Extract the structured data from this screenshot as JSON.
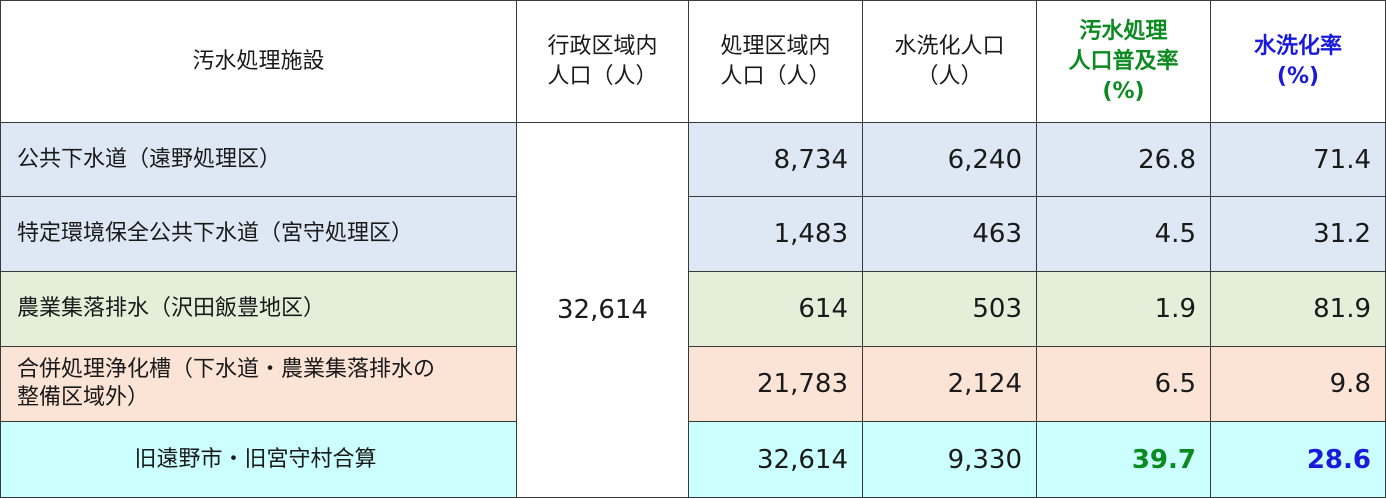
{
  "table": {
    "headers": {
      "facility": "汚水処理施設",
      "admin_pop_line1": "行政区域内",
      "admin_pop_line2": "人口（人）",
      "service_pop_line1": "処理区域内",
      "service_pop_line2": "人口（人）",
      "flush_pop_line1": "水洗化人口",
      "flush_pop_line2": "（人）",
      "coverage_line1": "汚水処理",
      "coverage_line2": "人口普及率",
      "coverage_line3": "(%)",
      "flush_rate_line1": "水洗化率",
      "flush_rate_line2": "(%)"
    },
    "admin_population": "32,614",
    "rows": [
      {
        "facility": "公共下水道（遠野処理区）",
        "service_pop": "8,734",
        "flush_pop": "6,240",
        "coverage": "26.8",
        "flush_rate": "71.4"
      },
      {
        "facility": "特定環境保全公共下水道（宮守処理区）",
        "service_pop": "1,483",
        "flush_pop": "463",
        "coverage": "4.5",
        "flush_rate": "31.2"
      },
      {
        "facility": "農業集落排水（沢田飯豊地区）",
        "service_pop": "614",
        "flush_pop": "503",
        "coverage": "1.9",
        "flush_rate": "81.9"
      },
      {
        "facility_line1": "合併処理浄化槽（下水道・農業集落排水の",
        "facility_line2": "整備区域外）",
        "service_pop": "21,783",
        "flush_pop": "2,124",
        "coverage": "6.5",
        "flush_rate": "9.8"
      },
      {
        "facility": "旧遠野市・旧宮守村合算",
        "service_pop": "32,614",
        "flush_pop": "9,330",
        "coverage": "39.7",
        "flush_rate": "28.6"
      }
    ],
    "colors": {
      "public_sewer_bg": "#dde8f4",
      "agri_bg": "#e4efda",
      "septic_bg": "#fbe4d6",
      "total_bg": "#ccffff",
      "coverage_accent": "#0a8a1f",
      "flush_rate_accent": "#1a1adc"
    }
  }
}
